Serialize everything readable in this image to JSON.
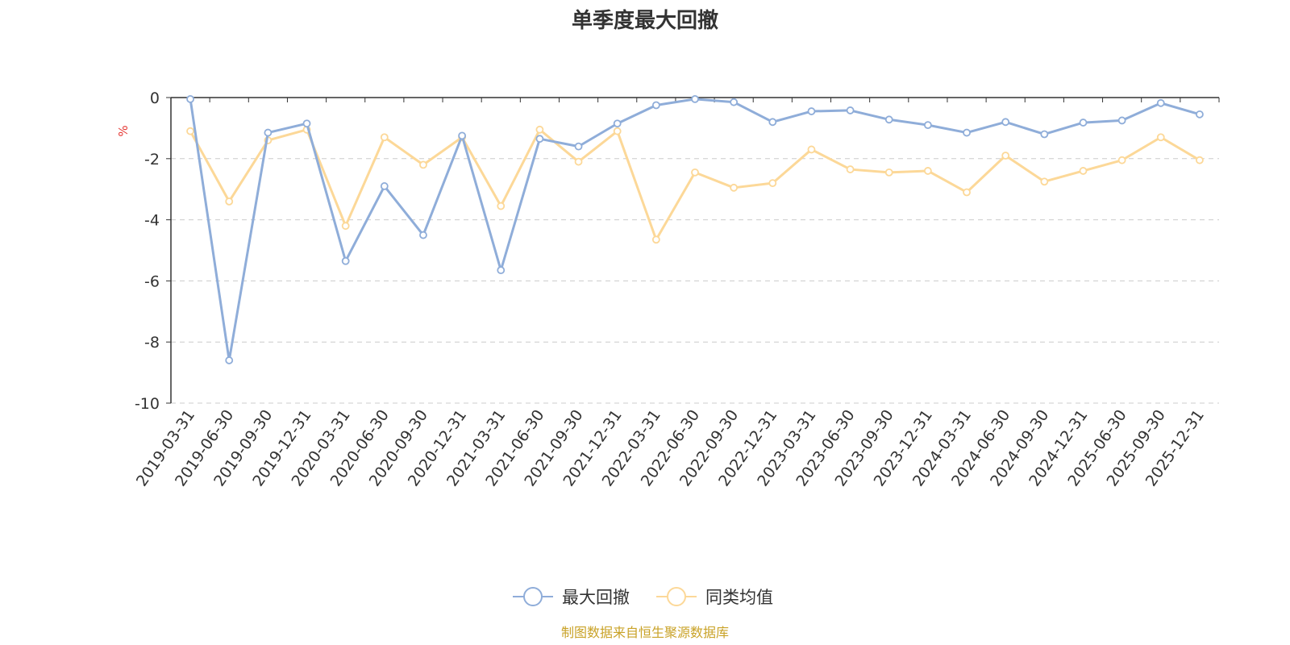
{
  "chart_data": {
    "type": "line",
    "title": "单季度最大回撤",
    "ylabel": "%",
    "ylim": [
      -10,
      0
    ],
    "yticks": [
      0,
      -2,
      -4,
      -6,
      -8,
      -10
    ],
    "grid": true,
    "legend_position": "bottom",
    "categories": [
      "2019-03-31",
      "2019-06-30",
      "2019-09-30",
      "2019-12-31",
      "2020-03-31",
      "2020-06-30",
      "2020-09-30",
      "2020-12-31",
      "2021-03-31",
      "2021-06-30",
      "2021-09-30",
      "2021-12-31",
      "2022-03-31",
      "2022-06-30",
      "2022-09-30",
      "2022-12-31",
      "2023-03-31",
      "2023-06-30",
      "2023-09-30",
      "2023-12-31",
      "2024-03-31",
      "2024-06-30",
      "2024-09-30",
      "2024-12-31",
      "2025-06-30",
      "2025-09-30",
      "2025-12-31"
    ],
    "series": [
      {
        "name": "最大回撤",
        "color": "#8fadd9",
        "values": [
          -0.05,
          -8.6,
          -1.15,
          -0.85,
          -5.35,
          -2.9,
          -4.5,
          -1.25,
          -5.65,
          -1.35,
          -1.6,
          -0.85,
          -0.25,
          -0.05,
          -0.15,
          -0.8,
          -0.45,
          -0.42,
          -0.72,
          -0.9,
          -1.15,
          -0.8,
          -1.2,
          -0.82,
          -0.75,
          -0.18,
          -0.55
        ]
      },
      {
        "name": "同类均值",
        "color": "#fcd898",
        "values": [
          -1.1,
          -3.4,
          -1.4,
          -1.05,
          -4.2,
          -1.3,
          -2.2,
          -1.3,
          -3.55,
          -1.05,
          -2.1,
          -1.1,
          -4.65,
          -2.45,
          -2.95,
          -2.8,
          -1.7,
          -2.35,
          -2.45,
          -2.4,
          -3.1,
          -1.9,
          -2.75,
          -2.4,
          -2.05,
          -1.3,
          -2.05
        ]
      }
    ]
  },
  "colors": {
    "axis": "#333333",
    "grid": "#cccccc",
    "unit": "#e53935",
    "source": "#c9a227"
  },
  "footer": {
    "source_text": "制图数据来自恒生聚源数据库"
  }
}
